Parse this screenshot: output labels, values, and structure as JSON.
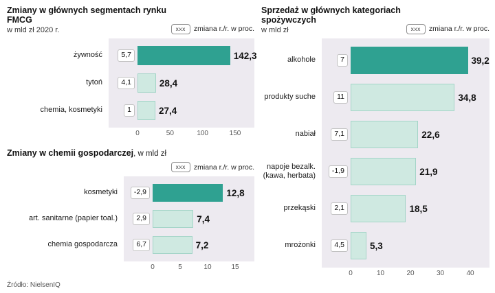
{
  "page": {
    "source": "Źródło: NielsenIQ"
  },
  "legend": {
    "box_label": "xxx",
    "text": "zmiana r./r. w proc."
  },
  "colors": {
    "bar_highlight": "#2fa191",
    "bar_normal": "#cfe9e1",
    "bar_normal_border": "#a3d4c7",
    "plot_bg": "#edeaf0"
  },
  "chart_data": [
    {
      "type": "bar",
      "title": "Zmiany w głównych segmentach rynku FMCG",
      "subtitle": "w mld zł 2020 r.",
      "legend": "zmiana r./r. w proc.",
      "categories": [
        "żywność",
        "tytoń",
        "chemia, kosmetyki"
      ],
      "values": [
        142.3,
        28.4,
        27.4
      ],
      "value_labels": [
        "142,3",
        "28,4",
        "27,4"
      ],
      "pct_change": [
        5.7,
        4.1,
        1
      ],
      "pct_labels": [
        "5,7",
        "4,1",
        "1"
      ],
      "xlim": [
        0,
        150
      ],
      "xticks": [
        0,
        50,
        100,
        150
      ],
      "highlight_index": 0
    },
    {
      "type": "bar",
      "title": "Zmiany w chemii gospodarczej",
      "title_suffix": ", w mld zł",
      "legend": "zmiana r./r. w proc.",
      "categories": [
        "kosmetyki",
        "art. sanitarne (papier toal.)",
        "chemia gospodarcza"
      ],
      "values": [
        12.8,
        7.4,
        7.2
      ],
      "value_labels": [
        "12,8",
        "7,4",
        "7,2"
      ],
      "pct_change": [
        -2.9,
        2.9,
        6.7
      ],
      "pct_labels": [
        "-2,9",
        "2,9",
        "6,7"
      ],
      "xlim": [
        0,
        15
      ],
      "xticks": [
        0,
        5,
        10,
        15
      ],
      "highlight_index": 0
    },
    {
      "type": "bar",
      "title": "Sprzedaż w głównych kategoriach spożywczych",
      "subtitle": "w mld zł",
      "legend": "zmiana r./r. w proc.",
      "categories": [
        "alkohole",
        "produkty suche",
        "nabiał",
        "napoje bezalk. (kawa, herbata)",
        "przekąski",
        "mrożonki"
      ],
      "values": [
        39.2,
        34.8,
        22.6,
        21.9,
        18.5,
        5.3
      ],
      "value_labels": [
        "39,2",
        "34,8",
        "22,6",
        "21,9",
        "18,5",
        "5,3"
      ],
      "pct_change": [
        7,
        11,
        7.1,
        -1.9,
        2.1,
        4.5
      ],
      "pct_labels": [
        "7",
        "11",
        "7,1",
        "-1,9",
        "2,1",
        "4,5"
      ],
      "xlim": [
        0,
        40
      ],
      "xticks": [
        0,
        10,
        20,
        30,
        40
      ],
      "highlight_index": 0
    }
  ]
}
